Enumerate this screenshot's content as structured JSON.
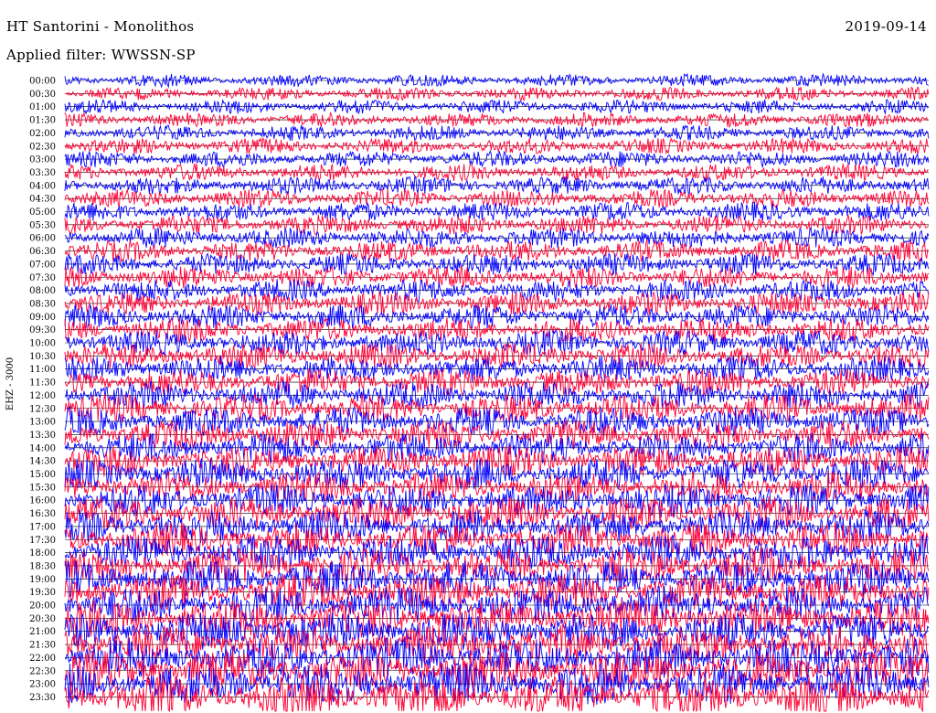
{
  "header": {
    "station": "HT Santorini - Monolithos",
    "date": "2019-09-14",
    "filter": "Applied filter: WWSSN-SP"
  },
  "channel": {
    "label": "EHZ - 3000"
  },
  "chart_data": {
    "type": "line",
    "title": "HT Santorini - Monolithos",
    "ylabel": "EHZ - 3000",
    "xlabel": "",
    "row_labels": [
      "00:00",
      "00:30",
      "01:00",
      "01:30",
      "02:00",
      "02:30",
      "03:00",
      "03:30",
      "04:00",
      "04:30",
      "05:00",
      "05:30",
      "06:00",
      "06:30",
      "07:00",
      "07:30",
      "08:00",
      "08:30",
      "09:00",
      "09:30",
      "10:00",
      "10:30",
      "11:00",
      "11:30",
      "12:00",
      "12:30",
      "13:00",
      "13:30",
      "14:00",
      "14:30",
      "15:00",
      "15:30",
      "16:00",
      "16:30",
      "17:00",
      "17:30",
      "18:00",
      "18:30",
      "19:00",
      "19:30",
      "20:00",
      "20:30",
      "21:00",
      "21:30",
      "22:00",
      "22:30",
      "23:00",
      "23:30"
    ],
    "row_colors": [
      "#0000ff",
      "#ff0033"
    ],
    "grid": false,
    "legend": "none"
  },
  "colors": {
    "trace_a": "#0000ff",
    "trace_b": "#ff0033",
    "baseline": "#000000",
    "background": "#ffffff"
  }
}
